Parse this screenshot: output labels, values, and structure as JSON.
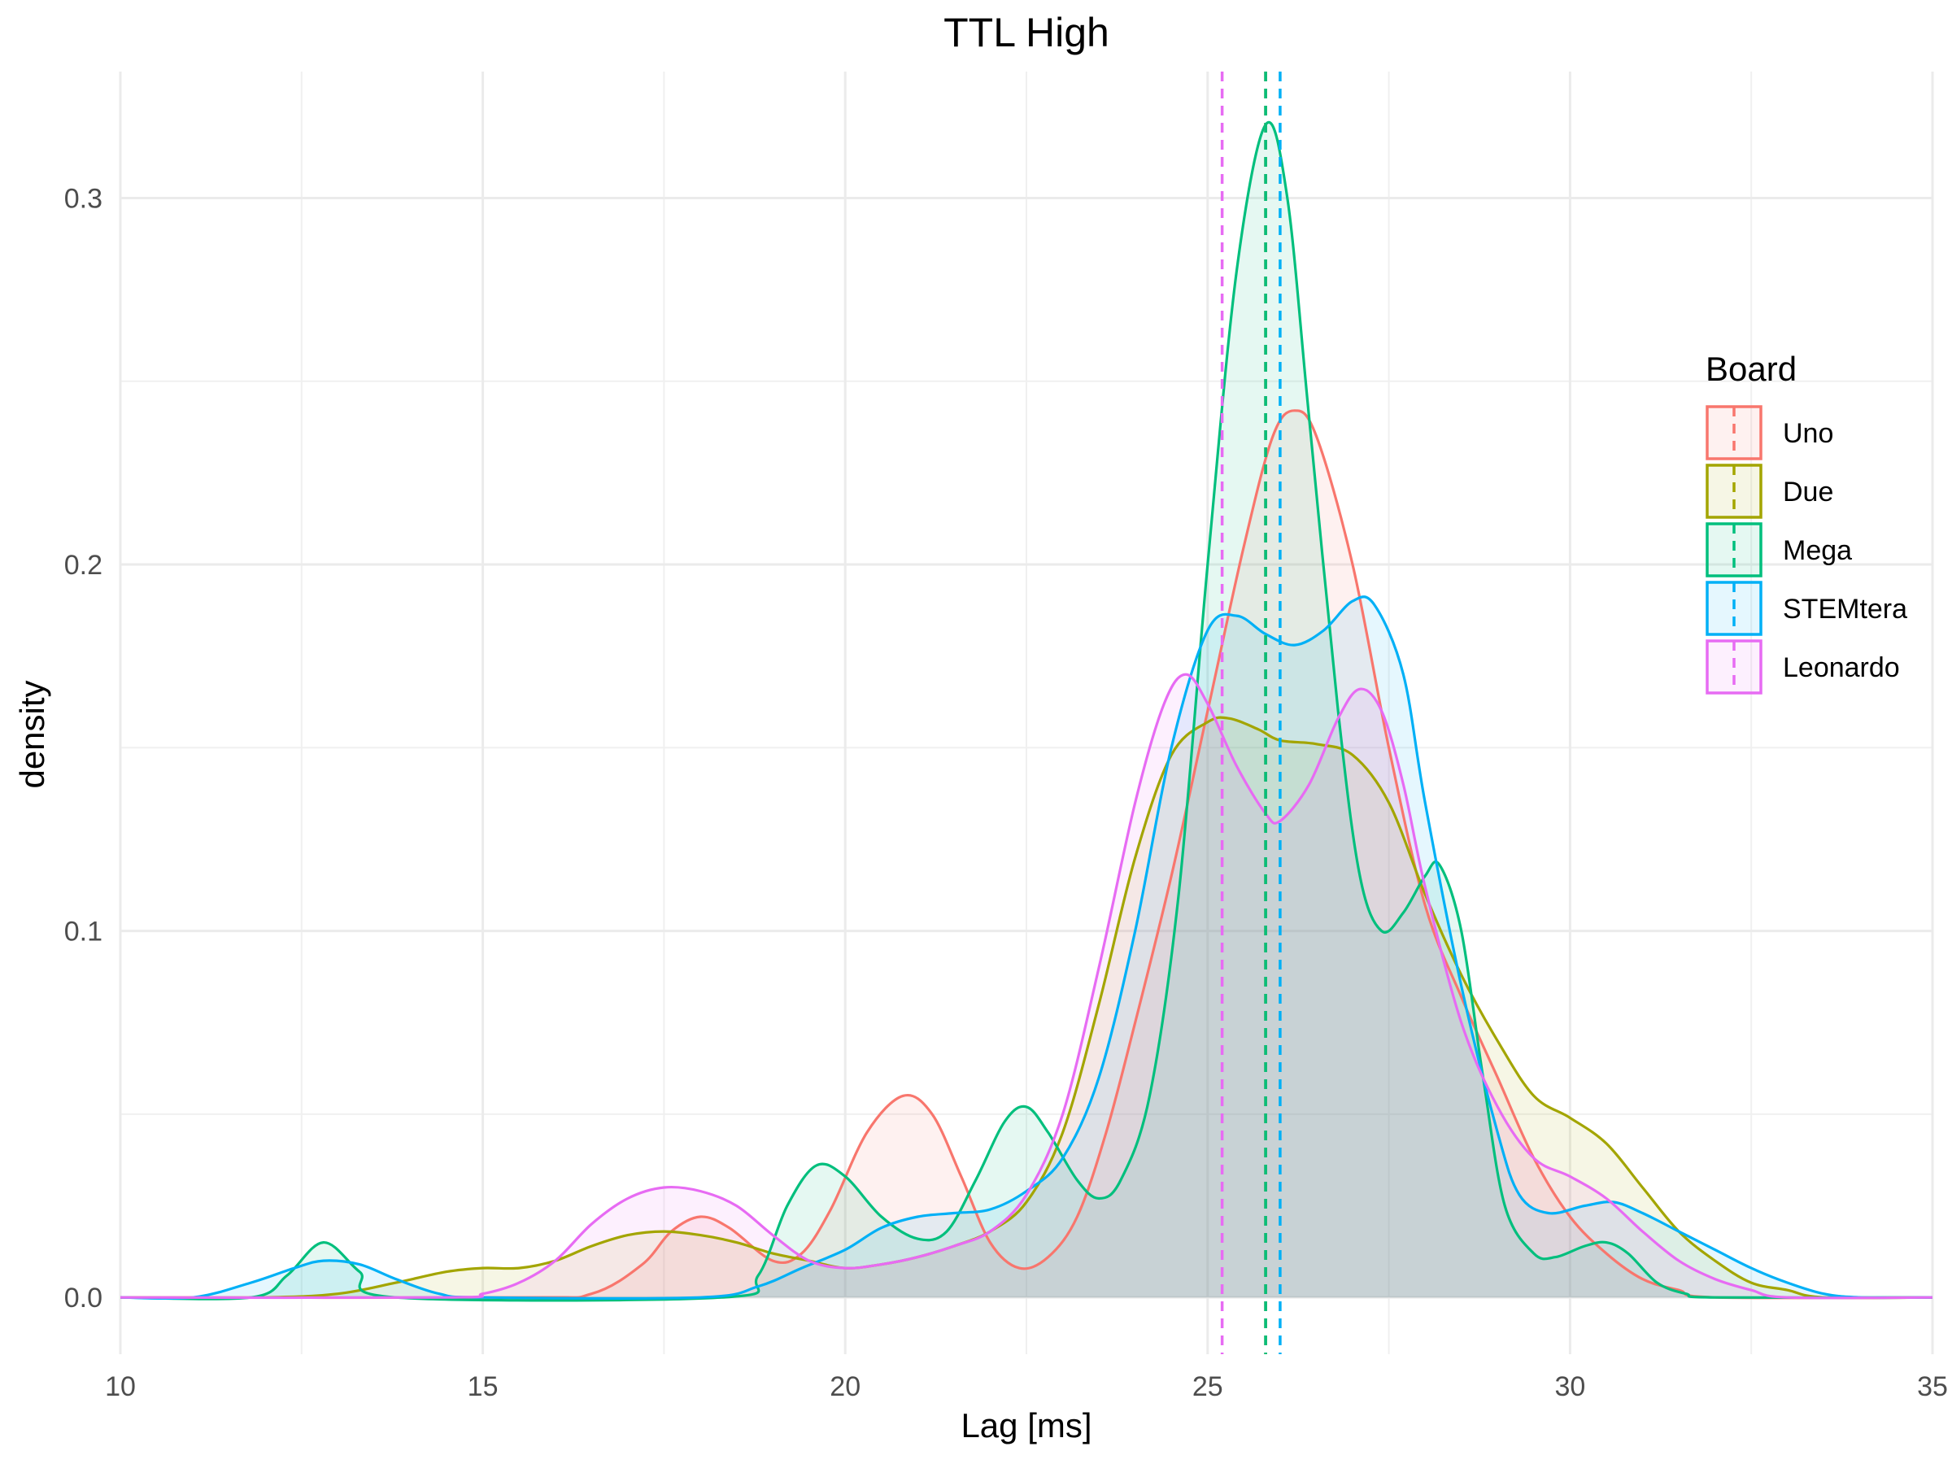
{
  "chart_data": {
    "type": "area",
    "title": "TTL High",
    "xlabel": "Lag [ms]",
    "ylabel": "density",
    "xlim": [
      10,
      35
    ],
    "ylim": [
      -0.0155,
      0.3345
    ],
    "x_ticks": [
      "10",
      "15",
      "20",
      "25",
      "30",
      "35"
    ],
    "y_ticks": [
      "0.0",
      "0.1",
      "0.2",
      "0.3"
    ],
    "grid": true,
    "legend": {
      "title": "Board",
      "position": "right"
    },
    "series": [
      {
        "name": "Uno",
        "color": "#F8766D",
        "mean": 25.8,
        "points": [
          [
            10,
            0
          ],
          [
            15.5,
            0
          ],
          [
            16.5,
            0.001
          ],
          [
            17.2,
            0.009
          ],
          [
            17.6,
            0.018
          ],
          [
            18,
            0.022
          ],
          [
            18.4,
            0.019
          ],
          [
            19,
            0.01
          ],
          [
            19.4,
            0.012
          ],
          [
            19.8,
            0.024
          ],
          [
            20.3,
            0.045
          ],
          [
            20.8,
            0.055
          ],
          [
            21.2,
            0.05
          ],
          [
            21.6,
            0.033
          ],
          [
            22,
            0.015
          ],
          [
            22.4,
            0.008
          ],
          [
            22.8,
            0.011
          ],
          [
            23.2,
            0.022
          ],
          [
            23.6,
            0.045
          ],
          [
            24,
            0.075
          ],
          [
            24.5,
            0.115
          ],
          [
            25,
            0.16
          ],
          [
            25.5,
            0.205
          ],
          [
            25.9,
            0.235
          ],
          [
            26.2,
            0.242
          ],
          [
            26.5,
            0.235
          ],
          [
            27,
            0.2
          ],
          [
            27.5,
            0.15
          ],
          [
            28,
            0.107
          ],
          [
            28.5,
            0.082
          ],
          [
            29,
            0.06
          ],
          [
            29.5,
            0.038
          ],
          [
            30,
            0.022
          ],
          [
            30.5,
            0.012
          ],
          [
            31,
            0.005
          ],
          [
            31.5,
            0.002
          ],
          [
            32,
            0
          ],
          [
            35,
            0
          ]
        ]
      },
      {
        "name": "Due",
        "color": "#A3A500",
        "mean": 25.8,
        "points": [
          [
            10,
            0
          ],
          [
            12,
            0
          ],
          [
            13,
            0.001
          ],
          [
            13.8,
            0.004
          ],
          [
            14.5,
            0.007
          ],
          [
            15,
            0.008
          ],
          [
            15.5,
            0.008
          ],
          [
            16,
            0.01
          ],
          [
            16.5,
            0.014
          ],
          [
            17,
            0.017
          ],
          [
            17.5,
            0.018
          ],
          [
            18,
            0.017
          ],
          [
            18.5,
            0.015
          ],
          [
            19,
            0.012
          ],
          [
            19.5,
            0.01
          ],
          [
            20,
            0.008
          ],
          [
            20.5,
            0.009
          ],
          [
            21,
            0.011
          ],
          [
            21.5,
            0.014
          ],
          [
            22,
            0.018
          ],
          [
            22.5,
            0.026
          ],
          [
            23,
            0.045
          ],
          [
            23.5,
            0.08
          ],
          [
            24,
            0.12
          ],
          [
            24.5,
            0.148
          ],
          [
            25,
            0.157
          ],
          [
            25.3,
            0.158
          ],
          [
            25.7,
            0.155
          ],
          [
            26,
            0.152
          ],
          [
            26.5,
            0.151
          ],
          [
            27,
            0.148
          ],
          [
            27.5,
            0.135
          ],
          [
            28,
            0.11
          ],
          [
            28.5,
            0.088
          ],
          [
            29,
            0.07
          ],
          [
            29.5,
            0.055
          ],
          [
            30,
            0.049
          ],
          [
            30.5,
            0.042
          ],
          [
            31,
            0.03
          ],
          [
            31.5,
            0.018
          ],
          [
            32,
            0.01
          ],
          [
            32.5,
            0.004
          ],
          [
            33,
            0.002
          ],
          [
            33.5,
            0
          ],
          [
            35,
            0
          ]
        ]
      },
      {
        "name": "Mega",
        "color": "#00BF7D",
        "mean": 25.8,
        "points": [
          [
            10,
            0
          ],
          [
            11.8,
            0
          ],
          [
            12.3,
            0.006
          ],
          [
            12.8,
            0.015
          ],
          [
            13.3,
            0.007
          ],
          [
            13.8,
            0
          ],
          [
            18.3,
            0
          ],
          [
            18.8,
            0.006
          ],
          [
            19.2,
            0.025
          ],
          [
            19.6,
            0.036
          ],
          [
            20,
            0.033
          ],
          [
            20.5,
            0.022
          ],
          [
            21,
            0.016
          ],
          [
            21.4,
            0.018
          ],
          [
            21.8,
            0.032
          ],
          [
            22.2,
            0.048
          ],
          [
            22.5,
            0.052
          ],
          [
            22.8,
            0.045
          ],
          [
            23.2,
            0.032
          ],
          [
            23.5,
            0.027
          ],
          [
            23.8,
            0.032
          ],
          [
            24.2,
            0.055
          ],
          [
            24.6,
            0.11
          ],
          [
            25,
            0.2
          ],
          [
            25.4,
            0.28
          ],
          [
            25.8,
            0.32
          ],
          [
            26.1,
            0.3
          ],
          [
            26.4,
            0.24
          ],
          [
            26.8,
            0.16
          ],
          [
            27.1,
            0.115
          ],
          [
            27.4,
            0.1
          ],
          [
            27.7,
            0.105
          ],
          [
            28,
            0.115
          ],
          [
            28.2,
            0.118
          ],
          [
            28.5,
            0.1
          ],
          [
            28.8,
            0.06
          ],
          [
            29.1,
            0.025
          ],
          [
            29.5,
            0.012
          ],
          [
            29.8,
            0.011
          ],
          [
            30.2,
            0.014
          ],
          [
            30.5,
            0.015
          ],
          [
            30.8,
            0.012
          ],
          [
            31.2,
            0.004
          ],
          [
            31.6,
            0.001
          ],
          [
            32,
            0
          ],
          [
            35,
            0
          ]
        ]
      },
      {
        "name": "STEMtera",
        "color": "#00B0F6",
        "mean": 26.0,
        "points": [
          [
            10,
            0
          ],
          [
            11,
            0
          ],
          [
            11.8,
            0.004
          ],
          [
            12.4,
            0.008
          ],
          [
            12.8,
            0.01
          ],
          [
            13.3,
            0.009
          ],
          [
            13.8,
            0.005
          ],
          [
            14.4,
            0.001
          ],
          [
            15,
            0
          ],
          [
            18,
            0
          ],
          [
            18.8,
            0.003
          ],
          [
            19.4,
            0.008
          ],
          [
            20,
            0.013
          ],
          [
            20.5,
            0.019
          ],
          [
            21,
            0.022
          ],
          [
            21.5,
            0.023
          ],
          [
            22,
            0.024
          ],
          [
            22.5,
            0.029
          ],
          [
            23,
            0.038
          ],
          [
            23.5,
            0.06
          ],
          [
            24,
            0.1
          ],
          [
            24.5,
            0.15
          ],
          [
            25,
            0.182
          ],
          [
            25.4,
            0.186
          ],
          [
            25.8,
            0.181
          ],
          [
            26.2,
            0.178
          ],
          [
            26.6,
            0.182
          ],
          [
            27,
            0.19
          ],
          [
            27.3,
            0.189
          ],
          [
            27.7,
            0.17
          ],
          [
            28,
            0.135
          ],
          [
            28.5,
            0.085
          ],
          [
            29,
            0.045
          ],
          [
            29.3,
            0.028
          ],
          [
            29.7,
            0.023
          ],
          [
            30.2,
            0.025
          ],
          [
            30.6,
            0.026
          ],
          [
            31,
            0.023
          ],
          [
            31.5,
            0.018
          ],
          [
            32,
            0.013
          ],
          [
            32.5,
            0.008
          ],
          [
            33,
            0.004
          ],
          [
            33.5,
            0.001
          ],
          [
            34,
            0
          ],
          [
            35,
            0
          ]
        ]
      },
      {
        "name": "Leonardo",
        "color": "#E76BF3",
        "mean": 25.2,
        "points": [
          [
            10,
            0
          ],
          [
            14.5,
            0
          ],
          [
            15,
            0.001
          ],
          [
            15.5,
            0.004
          ],
          [
            16,
            0.01
          ],
          [
            16.5,
            0.02
          ],
          [
            17,
            0.027
          ],
          [
            17.5,
            0.03
          ],
          [
            18,
            0.029
          ],
          [
            18.5,
            0.025
          ],
          [
            19,
            0.017
          ],
          [
            19.5,
            0.01
          ],
          [
            20,
            0.008
          ],
          [
            20.5,
            0.009
          ],
          [
            21,
            0.011
          ],
          [
            21.5,
            0.014
          ],
          [
            22,
            0.018
          ],
          [
            22.5,
            0.028
          ],
          [
            23,
            0.05
          ],
          [
            23.5,
            0.09
          ],
          [
            24,
            0.135
          ],
          [
            24.4,
            0.162
          ],
          [
            24.7,
            0.17
          ],
          [
            25,
            0.162
          ],
          [
            25.4,
            0.145
          ],
          [
            25.8,
            0.132
          ],
          [
            26,
            0.13
          ],
          [
            26.4,
            0.14
          ],
          [
            26.8,
            0.158
          ],
          [
            27.1,
            0.166
          ],
          [
            27.4,
            0.16
          ],
          [
            27.7,
            0.14
          ],
          [
            28,
            0.112
          ],
          [
            28.5,
            0.075
          ],
          [
            29,
            0.052
          ],
          [
            29.5,
            0.038
          ],
          [
            30,
            0.033
          ],
          [
            30.5,
            0.027
          ],
          [
            31,
            0.018
          ],
          [
            31.5,
            0.01
          ],
          [
            32,
            0.005
          ],
          [
            32.5,
            0.002
          ],
          [
            33,
            0
          ],
          [
            35,
            0
          ]
        ]
      }
    ]
  }
}
